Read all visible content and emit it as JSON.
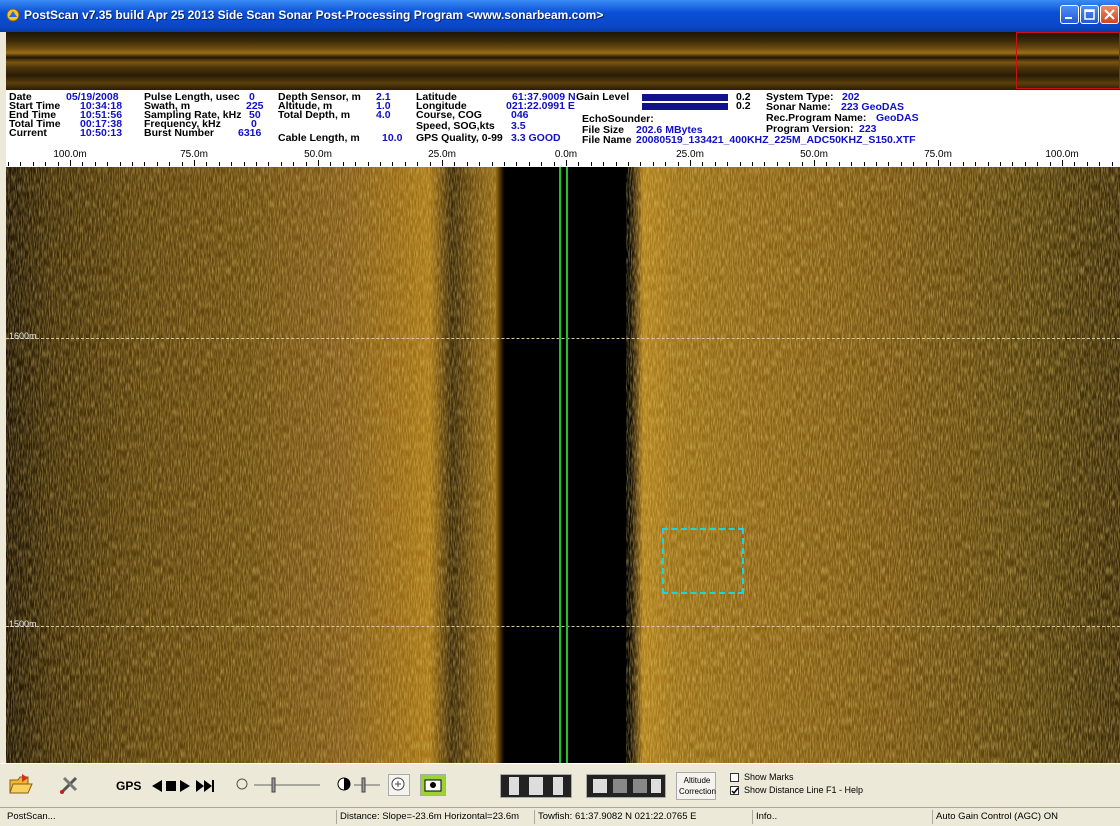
{
  "window": {
    "title": "PostScan v7.35 build Apr 25 2013  Side Scan Sonar Post-Processing Program  <www.sonarbeam.com>",
    "controls": [
      "minimize",
      "maximize",
      "close"
    ]
  },
  "info_panel": {
    "col1": [
      {
        "label": "Date",
        "value": "05/19/2008"
      },
      {
        "label": "Start Time",
        "value": "10:34:18"
      },
      {
        "label": "End  Time",
        "value": "10:51:56"
      },
      {
        "label": "Total Time",
        "value": "00:17:38"
      },
      {
        "label": "Current",
        "value": "10:50:13"
      }
    ],
    "col2": [
      {
        "label": "Pulse Length, usec",
        "value": "0"
      },
      {
        "label": "Swath, m",
        "value": "225"
      },
      {
        "label": "Sampling Rate, kHz",
        "value": "50"
      },
      {
        "label": "Frequency, kHz",
        "value": "0"
      },
      {
        "label": "Burst Number",
        "value": "6316"
      }
    ],
    "col3": [
      {
        "label": "Depth Sensor, m",
        "value": "2.1"
      },
      {
        "label": "Altitude, m",
        "value": "1.0"
      },
      {
        "label": "Total Depth, m",
        "value": "4.0"
      },
      {
        "label": "Cable Length, m",
        "value": "10.0"
      }
    ],
    "col4": [
      {
        "label": "Latitude",
        "value": "61:37.9009 N"
      },
      {
        "label": "Longitude",
        "value": "021:22.0991 E"
      },
      {
        "label": "Course, COG",
        "value": "046"
      },
      {
        "label": "Speed,  SOG,kts",
        "value": "3.5"
      },
      {
        "label": "GPS Quality, 0-99",
        "value": "3.3 GOOD"
      }
    ],
    "gain": {
      "label": "Gain Level",
      "value1": "0.2",
      "value2": "0.2"
    },
    "echosounder": {
      "label": "EchoSounder:"
    },
    "file_size": {
      "label": "File Size",
      "value": "202.6 MBytes"
    },
    "file_name": {
      "label": "File Name",
      "value": "20080519_133421_400KHZ_225M_ADC50KHZ_S150.XTF"
    },
    "col6": [
      {
        "label": "System Type:",
        "value": "202"
      },
      {
        "label": "Sonar Name:",
        "value": "223 GeoDAS"
      },
      {
        "label": "Rec.Program Name:",
        "value": "GeoDAS"
      },
      {
        "label": "Program Version:",
        "value": "223"
      }
    ]
  },
  "ruler": {
    "labels": [
      "100.0m",
      "75.0m",
      "50.0m",
      "25.0m",
      "0.0m",
      "25.0m",
      "50.0m",
      "75.0m",
      "100.0m"
    ]
  },
  "sonar": {
    "distance_lines": [
      "1600m",
      "1500m"
    ]
  },
  "toolbar": {
    "gps_label": "GPS",
    "altitude_correction_label": "Altitude Correction",
    "show_marks_label": "Show Marks",
    "show_marks_checked": false,
    "show_distance_line_label": "Show Distance Line",
    "show_distance_line_checked": true,
    "help_label": "F1 - Help"
  },
  "status": {
    "app": "PostScan...",
    "distance": "Distance: Slope=-23.6m Horizontal=23.6m",
    "towfish": "Towfish: 61:37.9082 N  021:22.0765 E",
    "info": "Info..",
    "agc": "Auto Gain Control (AGC) ON"
  },
  "colors": {
    "title_bar": "#0a4fd6",
    "value_text": "#1010c8",
    "nadir_line": "#22c02a",
    "target_box": "#18d8d8",
    "overview_box": "#d01010",
    "sonar_amber": "#a87818"
  }
}
